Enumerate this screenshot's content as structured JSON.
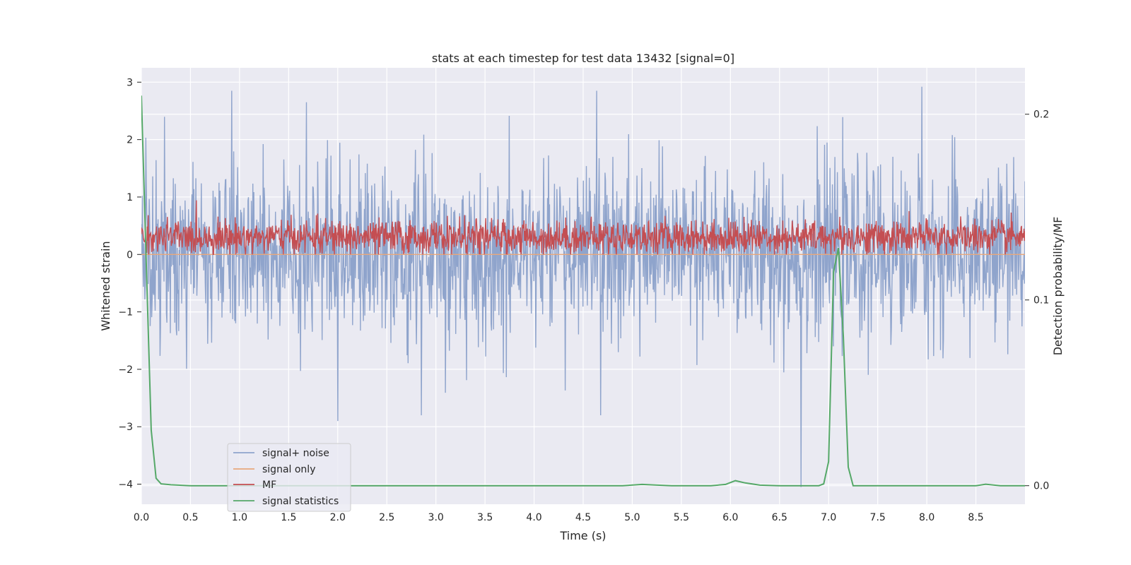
{
  "chart_data": {
    "type": "line",
    "title": "stats at each timestep for test data 13432 [signal=0]",
    "xlabel": "Time (s)",
    "ylabel": "Whitened strain",
    "y2label": "Detection probability/MF",
    "xlim": [
      0.0,
      9.0
    ],
    "ylim": [
      -4.35,
      3.25
    ],
    "y2lim": [
      -0.01,
      0.225
    ],
    "xticks": [
      "0.0",
      "0.5",
      "1.0",
      "1.5",
      "2.0",
      "2.5",
      "3.0",
      "3.5",
      "4.0",
      "4.5",
      "5.0",
      "5.5",
      "6.0",
      "6.5",
      "7.0",
      "7.5",
      "8.0",
      "8.5"
    ],
    "yticks": [
      "3",
      "2",
      "1",
      "0",
      "−1",
      "−2",
      "−3",
      "−4"
    ],
    "y2ticks": [
      "0.2",
      "0.1",
      "0.0"
    ],
    "legend_position": "lower-left",
    "grid": true,
    "series": [
      {
        "name": "signal+ noise",
        "axis": "left",
        "color": "#8fa4cc",
        "description_values": {
          "mean": 0.0,
          "std": 0.75,
          "min": -4.05,
          "max": 2.92,
          "n_points": 1800
        },
        "peaks": [
          {
            "x": 0.92,
            "y": 2.85
          },
          {
            "x": 1.68,
            "y": 2.65
          },
          {
            "x": 4.64,
            "y": 2.85
          },
          {
            "x": 7.95,
            "y": 2.92
          },
          {
            "x": 2.0,
            "y": -2.9
          },
          {
            "x": 6.72,
            "y": -4.05
          },
          {
            "x": 4.68,
            "y": -2.8
          },
          {
            "x": 2.85,
            "y": -2.8
          }
        ]
      },
      {
        "name": "signal only",
        "axis": "left",
        "color": "#e8a87c",
        "x": [
          0.0,
          9.0
        ],
        "y": [
          0.0,
          0.0
        ]
      },
      {
        "name": "MF",
        "axis": "left",
        "color": "#c44e52",
        "description_values": {
          "mean": 0.3,
          "std": 0.15,
          "min": 0.0,
          "max": 0.98,
          "n_points": 1800
        }
      },
      {
        "name": "signal statistics",
        "axis": "right",
        "color": "#55a868",
        "x": [
          0.0,
          0.05,
          0.1,
          0.15,
          0.2,
          0.3,
          0.5,
          1.0,
          2.0,
          3.0,
          4.0,
          4.9,
          5.1,
          5.4,
          5.8,
          5.95,
          6.05,
          6.15,
          6.3,
          6.5,
          6.9,
          6.95,
          7.0,
          7.05,
          7.1,
          7.15,
          7.2,
          7.25,
          7.5,
          8.0,
          8.5,
          8.6,
          8.75,
          9.0
        ],
        "y": [
          0.21,
          0.12,
          0.03,
          0.004,
          0.001,
          0.0005,
          0.0,
          0.0,
          0.0,
          0.0,
          0.0,
          0.0,
          0.0007,
          0.0,
          0.0,
          0.0007,
          0.0027,
          0.0015,
          0.0003,
          0.0,
          0.0,
          0.001,
          0.013,
          0.115,
          0.128,
          0.08,
          0.01,
          0.0,
          0.0,
          0.0,
          0.0,
          0.0008,
          0.0,
          0.0
        ]
      }
    ]
  }
}
